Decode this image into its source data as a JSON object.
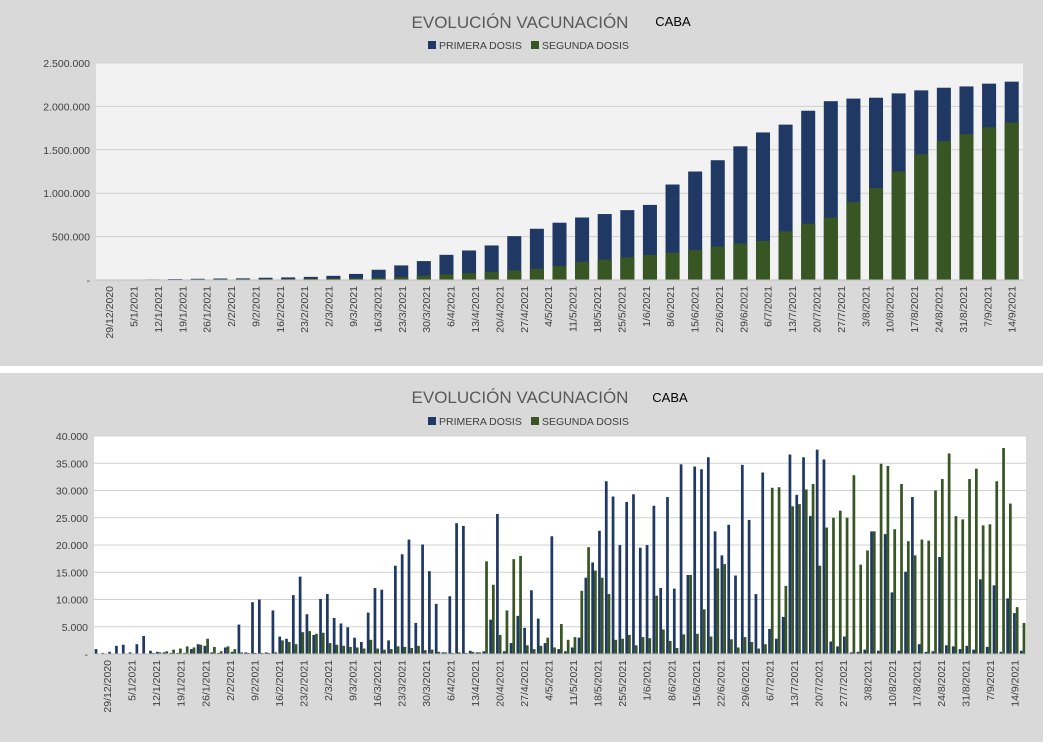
{
  "chart_data": [
    {
      "type": "bar",
      "title": "EVOLUCIÓN VACUNACIÓN",
      "subtitle": "CABA",
      "legend_position": "top",
      "grid": true,
      "ylim": [
        0,
        2500000
      ],
      "y_ticks": [
        "-",
        "500.000",
        "1.000.000",
        "1.500.000",
        "2.000.000",
        "2.500.000"
      ],
      "x_tick_labels": [
        "29/12/2020",
        "5/1/2021",
        "12/1/2021",
        "19/1/2021",
        "26/1/2021",
        "2/2/2021",
        "9/2/2021",
        "16/2/2021",
        "23/2/2021",
        "2/3/2021",
        "9/3/2021",
        "16/3/2021",
        "23/3/2021",
        "30/3/2021",
        "6/4/2021",
        "13/4/2021",
        "20/4/2021",
        "27/4/2021",
        "4/5/2021",
        "11/5/2021",
        "18/5/2021",
        "25/5/2021",
        "1/6/2021",
        "8/6/2021",
        "15/6/2021",
        "22/6/2021",
        "29/6/2021",
        "6/7/2021",
        "13/7/2021",
        "20/7/2021",
        "27/7/2021",
        "3/8/2021",
        "10/8/2021",
        "17/8/2021",
        "24/8/2021",
        "31/8/2021",
        "7/9/2021",
        "14/9/2021"
      ],
      "series": [
        {
          "name": "PRIMERA DOSIS",
          "color": "#1f3864",
          "values": [
            2000,
            4000,
            7000,
            11000,
            14000,
            17000,
            19000,
            26000,
            30000,
            36000,
            48000,
            70000,
            118000,
            168000,
            218000,
            290000,
            340000,
            398000,
            505000,
            590000,
            660000,
            720000,
            760000,
            805000,
            865000,
            1100000,
            1250000,
            1380000,
            1540000,
            1700000,
            1790000,
            1950000,
            2060000,
            2090000,
            2100000,
            2150000,
            2185000,
            2215000,
            2230000,
            2262000,
            2285000
          ]
        },
        {
          "name": "SEGUNDA DOSIS",
          "color": "#375623",
          "values": [
            0,
            0,
            0,
            1000,
            3000,
            6000,
            9000,
            11000,
            13000,
            16000,
            18000,
            20000,
            25000,
            35000,
            50000,
            65000,
            80000,
            95000,
            110000,
            130000,
            160000,
            210000,
            235000,
            262000,
            290000,
            315000,
            345000,
            385000,
            420000,
            450000,
            560000,
            650000,
            720000,
            900000,
            1060000,
            1250000,
            1450000,
            1600000,
            1680000,
            1760000,
            1815000
          ]
        }
      ]
    },
    {
      "type": "bar",
      "title": "EVOLUCIÓN VACUNACIÓN",
      "subtitle": "CABA",
      "legend_position": "top",
      "grid": true,
      "ylim": [
        0,
        40000
      ],
      "y_ticks": [
        "-",
        "5.000",
        "10.000",
        "15.000",
        "20.000",
        "25.000",
        "30.000",
        "35.000",
        "40.000"
      ],
      "x_tick_labels": [
        "29/12/2020",
        "5/1/2021",
        "12/1/2021",
        "19/1/2021",
        "26/1/2021",
        "2/2/2021",
        "9/2/2021",
        "16/2/2021",
        "23/2/2021",
        "2/3/2021",
        "9/3/2021",
        "16/3/2021",
        "23/3/2021",
        "30/3/2021",
        "6/4/2021",
        "13/4/2021",
        "20/4/2021",
        "27/4/2021",
        "4/5/2021",
        "11/5/2021",
        "18/5/2021",
        "25/5/2021",
        "1/6/2021",
        "8/6/2021",
        "15/6/2021",
        "22/6/2021",
        "29/6/2021",
        "6/7/2021",
        "13/7/2021",
        "20/7/2021",
        "27/7/2021",
        "3/8/2021",
        "10/8/2021",
        "17/8/2021",
        "24/8/2021",
        "31/8/2021",
        "7/9/2021",
        "14/9/2021"
      ],
      "series": [
        {
          "name": "PRIMERA DOSIS",
          "color": "#1f3864",
          "values": [
            900,
            200,
            400,
            1500,
            1700,
            300,
            1800,
            3300,
            600,
            400,
            300,
            200,
            200,
            200,
            900,
            1800,
            1500,
            300,
            200,
            1200,
            400,
            5400,
            300,
            9500,
            10000,
            300,
            8000,
            3200,
            2800,
            10800,
            14200,
            7300,
            3500,
            10100,
            11000,
            6600,
            5600,
            4900,
            3000,
            2200,
            7600,
            12100,
            11800,
            2500,
            16200,
            18300,
            21000,
            5700,
            20100,
            15200,
            9200,
            300,
            10600,
            24000,
            23500,
            600,
            300,
            500,
            6300,
            25700,
            500,
            2000,
            7000,
            4800,
            11700,
            6500,
            2000,
            21600,
            900,
            500,
            1200,
            3000,
            14000,
            16800,
            22600,
            31700,
            28900,
            20000,
            27900,
            29300,
            19500,
            20000,
            27200,
            12100,
            28800,
            12000,
            34800,
            14500,
            34400,
            33900,
            36100,
            22500,
            18100,
            23700,
            14400,
            34700,
            24600,
            11000,
            33300,
            4600,
            2800,
            6800,
            36600,
            29200,
            36100,
            25300,
            37500,
            35700,
            2300,
            1400,
            3200,
            300,
            400,
            800,
            22500,
            600,
            22000,
            11300,
            600,
            15100,
            28800,
            1800,
            400,
            500,
            17800,
            1600,
            1400,
            900,
            1500,
            800,
            13700,
            1300,
            12600,
            400,
            10200,
            7500,
            600
          ]
        },
        {
          "name": "SEGUNDA DOSIS",
          "color": "#375623",
          "values": [
            0,
            0,
            0,
            0,
            0,
            0,
            0,
            0,
            200,
            300,
            500,
            800,
            1000,
            1400,
            1200,
            1700,
            2800,
            1300,
            500,
            1400,
            900,
            300,
            200,
            200,
            200,
            200,
            300,
            2500,
            2200,
            1800,
            4000,
            4200,
            3700,
            3900,
            2000,
            1700,
            1500,
            1300,
            1200,
            1000,
            2600,
            1000,
            800,
            900,
            1400,
            1300,
            1100,
            1500,
            700,
            800,
            400,
            300,
            200,
            300,
            200,
            400,
            300,
            17000,
            12700,
            3500,
            8000,
            17400,
            18000,
            1600,
            900,
            1500,
            3000,
            1200,
            5500,
            2600,
            3100,
            11600,
            19600,
            15300,
            14000,
            11000,
            2600,
            2800,
            3500,
            1600,
            3100,
            2900,
            10700,
            4500,
            2400,
            1100,
            3600,
            14500,
            3700,
            8200,
            3200,
            15700,
            16500,
            2700,
            1200,
            3100,
            2200,
            1000,
            1800,
            30500,
            30600,
            12500,
            27100,
            27500,
            30200,
            31200,
            16200,
            23200,
            25000,
            26300,
            25000,
            32800,
            16400,
            19000,
            22500,
            34900,
            34500,
            22900,
            31200,
            20700,
            18100,
            21000,
            20800,
            30000,
            32100,
            36800,
            25300,
            24700,
            32100,
            34000,
            23600,
            23800,
            31700,
            37800,
            27600,
            8600,
            5700,
            11500,
            36800,
            34900,
            25000,
            6500
          ]
        }
      ]
    }
  ]
}
